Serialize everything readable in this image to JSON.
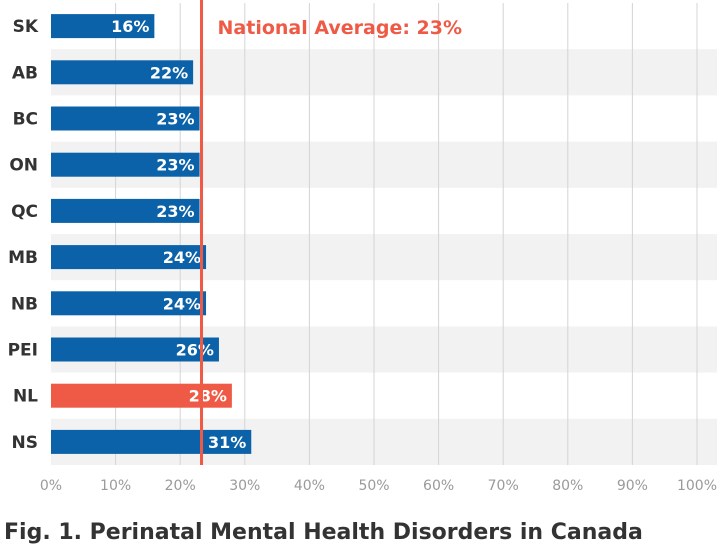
{
  "caption": "Fig. 1. Perinatal Mental Health Disorders in Canada",
  "colors": {
    "bar": "#0b62a8",
    "highlight_bar": "#ee5a45",
    "reference_line": "#ee5a45",
    "band": "#f2f2f2",
    "grid": "#d4d4d4"
  },
  "chart_data": {
    "type": "bar",
    "orientation": "horizontal",
    "categories": [
      "SK",
      "AB",
      "BC",
      "ON",
      "QC",
      "MB",
      "NB",
      "PEI",
      "NL",
      "NS"
    ],
    "values": [
      16,
      22,
      23,
      23,
      23,
      24,
      24,
      26,
      28,
      31
    ],
    "value_labels": [
      "16%",
      "22%",
      "23%",
      "23%",
      "23%",
      "24%",
      "24%",
      "26%",
      "28%",
      "31%"
    ],
    "highlight": [
      "NL"
    ],
    "xlim": [
      0,
      100
    ],
    "xticks": [
      0,
      10,
      20,
      30,
      40,
      50,
      60,
      70,
      80,
      90,
      100
    ],
    "xtick_labels": [
      "0%",
      "10%",
      "20%",
      "30%",
      "40%",
      "50%",
      "60%",
      "70%",
      "80%",
      "90%",
      "100%"
    ],
    "reference_line": {
      "value": 23.3,
      "label": "National Average: 23%"
    },
    "grid": true,
    "legend": "none"
  }
}
